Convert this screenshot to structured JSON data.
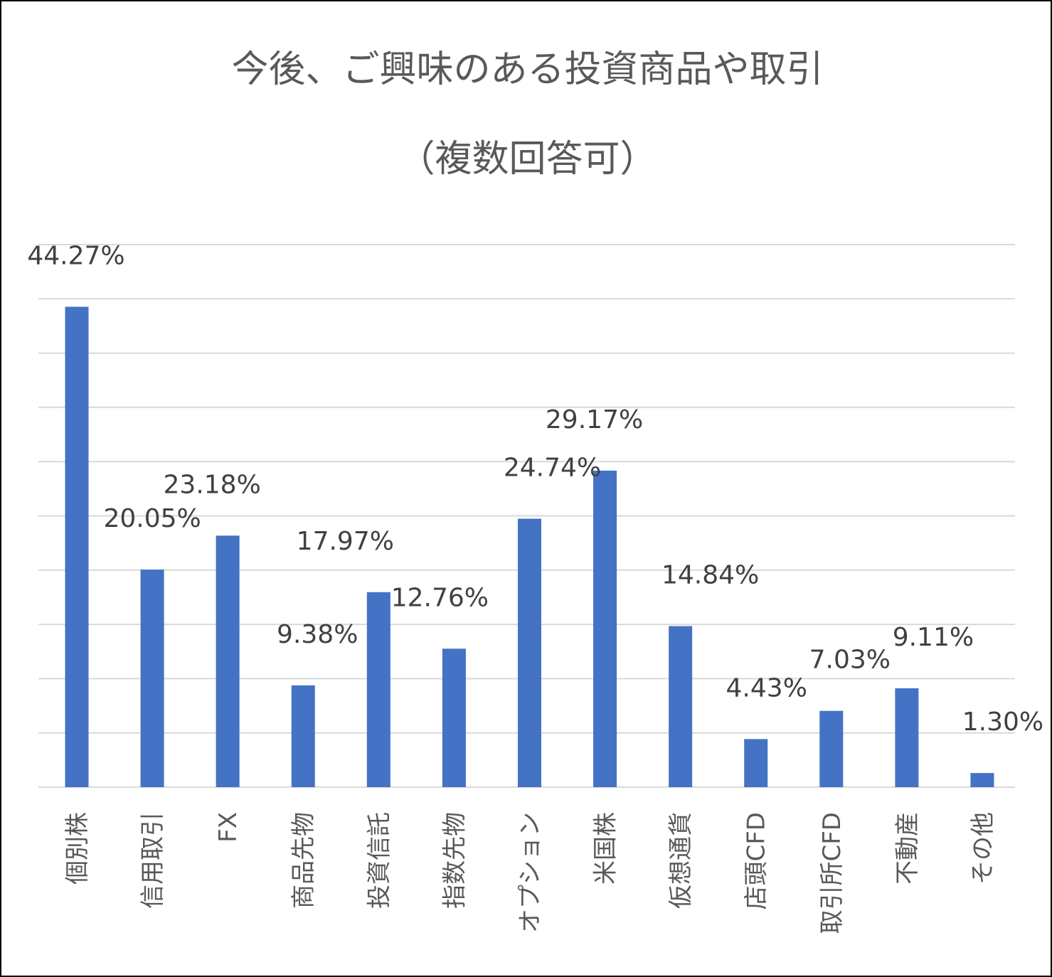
{
  "chart_data": {
    "type": "bar",
    "title": "今後、ご興味のある投資商品や取引",
    "subtitle": "（複数回答可）",
    "categories": [
      "個別株",
      "信用取引",
      "FX",
      "商品先物",
      "投資信託",
      "指数先物",
      "オプション",
      "米国株",
      "仮想通貨",
      "店頭CFD",
      "取引所CFD",
      "不動産",
      "その他"
    ],
    "series": [
      {
        "values": [
          44.27,
          20.05,
          23.18,
          9.38,
          17.97,
          12.76,
          24.74,
          29.17,
          14.84,
          4.43,
          7.03,
          9.11,
          1.3
        ],
        "labels": [
          "44.27%",
          "20.05%",
          "23.18%",
          "9.38%",
          "17.97%",
          "12.76%",
          "24.74%",
          "29.17%",
          "14.84%",
          "4.43%",
          "7.03%",
          "9.11%",
          "1.30%"
        ]
      }
    ],
    "ylim": [
      0,
      50
    ],
    "grid": true,
    "bar_color": "#4472C4"
  }
}
